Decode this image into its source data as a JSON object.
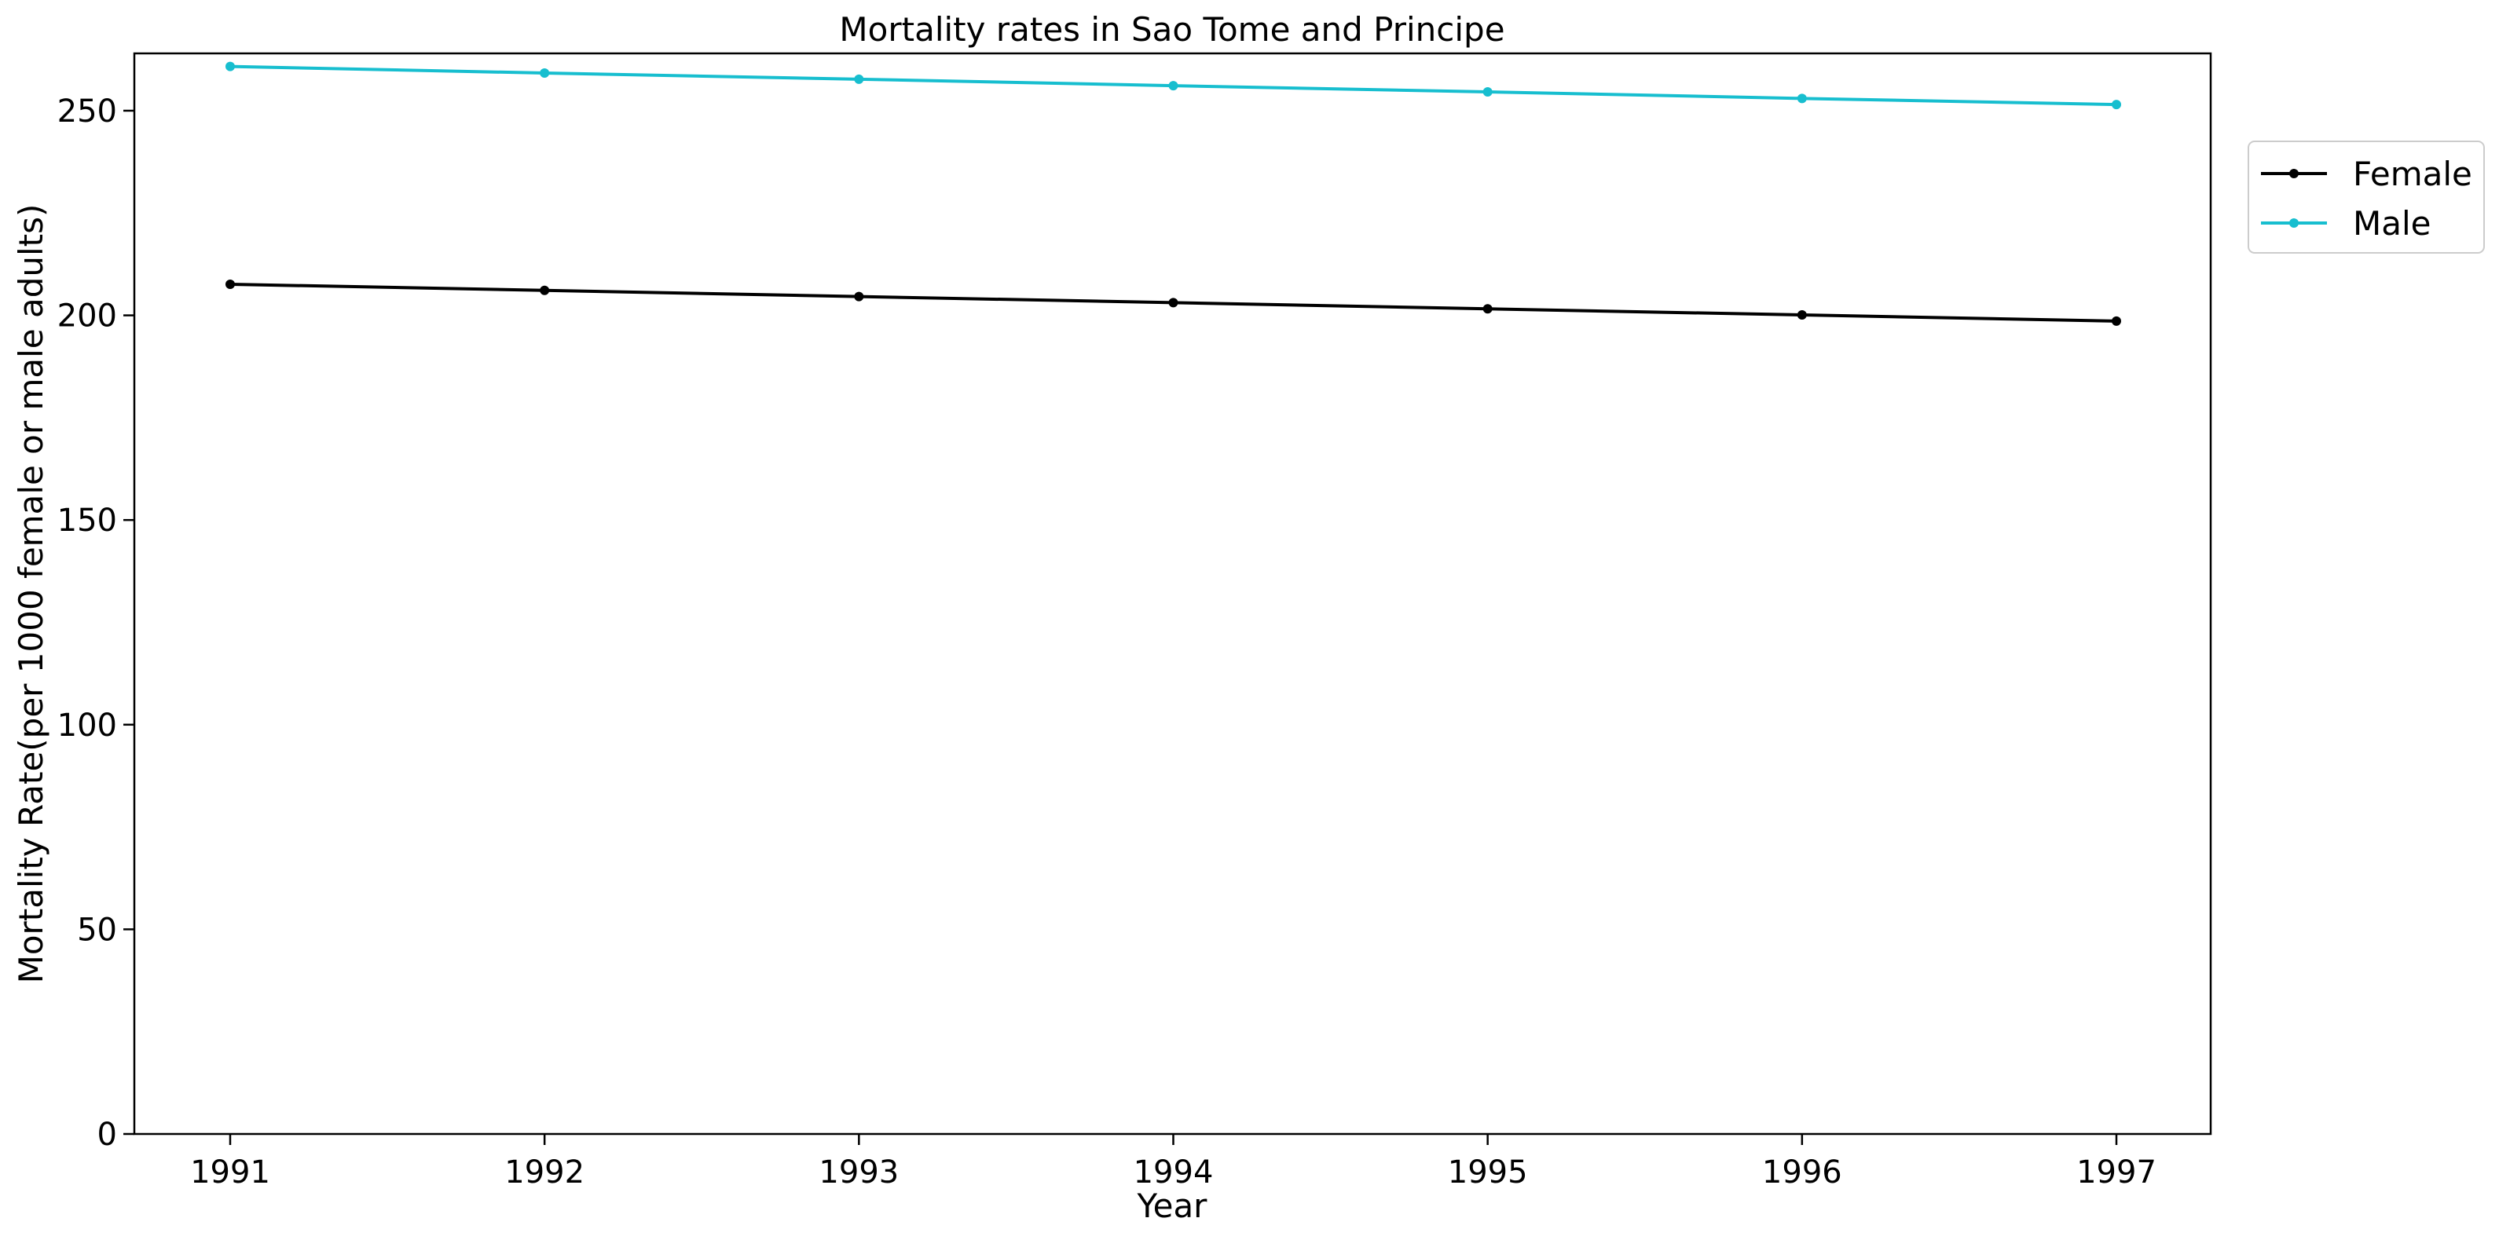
{
  "chart_data": {
    "type": "line",
    "title": "Mortality rates in Sao Tome and Principe",
    "xlabel": "Year",
    "ylabel": "Mortality Rate(per 1000 female or male adults)",
    "x": [
      "1991",
      "1992",
      "1993",
      "1994",
      "1995",
      "1996",
      "1997"
    ],
    "ylim": [
      0,
      264
    ],
    "yticks": [
      0,
      50,
      100,
      150,
      200,
      250
    ],
    "grid": false,
    "legend_position": "upper-right-outside",
    "series": [
      {
        "name": "Female",
        "color": "#000000",
        "values": [
          207.6,
          206.1,
          204.6,
          203.1,
          201.6,
          200.1,
          198.6
        ]
      },
      {
        "name": "Male",
        "color": "#17becf",
        "values": [
          260.8,
          259.2,
          257.7,
          256.1,
          254.6,
          253.0,
          251.5
        ]
      }
    ]
  }
}
